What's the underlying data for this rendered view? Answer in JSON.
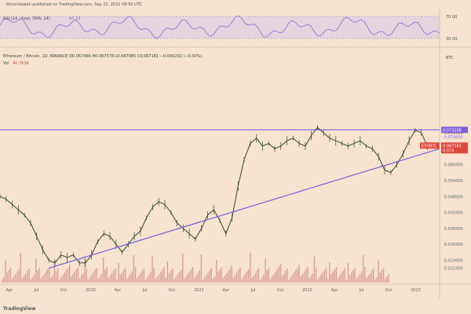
{
  "publisher": "bitcoinwalah published on TradingView.com, Sep 22, 2022 08:50 UTC",
  "footer_brand": "TradingView",
  "colors": {
    "background": "#f7e3cf",
    "candle": "#2f4a2a",
    "trendline": "#7b5ee0",
    "rsi_band": "#d9c8e6",
    "rsi_line": "#8e6fd0",
    "volume": "#d28b8b",
    "price_badge": "#e0473c",
    "level_badge": "#7b5ee0"
  },
  "chart_data": [
    {
      "type": "line",
      "title": "RSI (14, close, SMA, 14)",
      "last_value": "43.33",
      "y_ticks": [
        "70.00",
        "30.00"
      ],
      "ylim": [
        20,
        80
      ],
      "band": [
        30,
        70
      ]
    },
    {
      "type": "candlestick",
      "title": "Ethereum / Bitcoin, 1D, BINANCE",
      "ohlc_readout": "O0.067466 H0.067578 L0.067085 C0.067181 −0.000202 (−0.30%)",
      "volume_label": "Vol",
      "volume_value": "40.763K",
      "currency": "BTC",
      "ylim": [
        0.02,
        0.096
      ],
      "y_ticks": [
        "0.072000",
        "0.066000",
        "0.060000",
        "0.054000",
        "0.048000",
        "0.042000",
        "0.036000",
        "0.030000",
        "0.024000",
        "0.021000"
      ],
      "x_ticks": [
        "Apr",
        "Jul",
        "Oct",
        "2020",
        "Apr",
        "Jul",
        "Oct",
        "2021",
        "Apr",
        "Jul",
        "Oct",
        "2022",
        "Apr",
        "Jul",
        "Oct",
        "2023"
      ],
      "price_path": [
        [
          0,
          0.048
        ],
        [
          5,
          0.047
        ],
        [
          10,
          0.045
        ],
        [
          15,
          0.043
        ],
        [
          20,
          0.041
        ],
        [
          25,
          0.038
        ],
        [
          30,
          0.033
        ],
        [
          35,
          0.028
        ],
        [
          40,
          0.024
        ],
        [
          45,
          0.023
        ],
        [
          50,
          0.026
        ],
        [
          55,
          0.025
        ],
        [
          60,
          0.026
        ],
        [
          65,
          0.023
        ],
        [
          70,
          0.023
        ],
        [
          75,
          0.026
        ],
        [
          80,
          0.031
        ],
        [
          85,
          0.034
        ],
        [
          90,
          0.033
        ],
        [
          95,
          0.03
        ],
        [
          100,
          0.027
        ],
        [
          105,
          0.03
        ],
        [
          110,
          0.033
        ],
        [
          115,
          0.035
        ],
        [
          120,
          0.04
        ],
        [
          125,
          0.044
        ],
        [
          130,
          0.046
        ],
        [
          135,
          0.045
        ],
        [
          140,
          0.042
        ],
        [
          145,
          0.038
        ],
        [
          150,
          0.036
        ],
        [
          155,
          0.034
        ],
        [
          160,
          0.032
        ],
        [
          165,
          0.036
        ],
        [
          170,
          0.041
        ],
        [
          175,
          0.043
        ],
        [
          180,
          0.039
        ],
        [
          185,
          0.034
        ],
        [
          190,
          0.04
        ],
        [
          195,
          0.052
        ],
        [
          200,
          0.062
        ],
        [
          205,
          0.068
        ],
        [
          210,
          0.07
        ],
        [
          215,
          0.067
        ],
        [
          220,
          0.068
        ],
        [
          225,
          0.066
        ],
        [
          230,
          0.067
        ],
        [
          235,
          0.069
        ],
        [
          240,
          0.07
        ],
        [
          245,
          0.068
        ],
        [
          250,
          0.067
        ],
        [
          255,
          0.071
        ],
        [
          260,
          0.074
        ],
        [
          265,
          0.072
        ],
        [
          270,
          0.07
        ],
        [
          275,
          0.069
        ],
        [
          280,
          0.068
        ],
        [
          285,
          0.067
        ],
        [
          290,
          0.068
        ],
        [
          295,
          0.069
        ],
        [
          300,
          0.067
        ],
        [
          305,
          0.066
        ],
        [
          310,
          0.063
        ],
        [
          315,
          0.058
        ],
        [
          320,
          0.057
        ],
        [
          325,
          0.06
        ],
        [
          330,
          0.064
        ],
        [
          335,
          0.069
        ],
        [
          340,
          0.073
        ],
        [
          345,
          0.072
        ],
        [
          350,
          0.067
        ]
      ],
      "trendline": [
        [
          40,
          0.021
        ],
        [
          360,
          0.066
        ]
      ],
      "resistance_level": 0.0731,
      "price_level_labels": [
        "0.073108",
        "0.074000"
      ],
      "current_price_label": "ETHBTC",
      "current_price": "0.067181",
      "current_price_sub": "0.074"
    }
  ]
}
